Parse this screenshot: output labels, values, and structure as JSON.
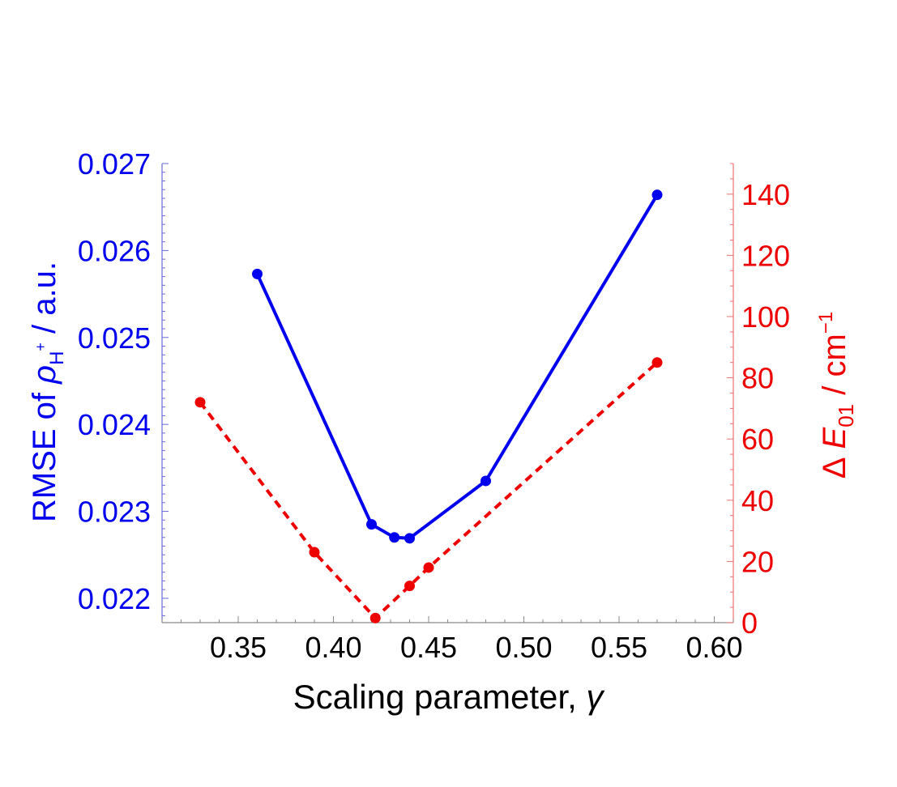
{
  "chart_data": {
    "type": "line",
    "xlabel": {
      "text": "Scaling parameter, ",
      "sym": "γ"
    },
    "xlim": [
      0.31,
      0.61
    ],
    "xticks": [
      "0.35",
      "0.40",
      "0.45",
      "0.50",
      "0.55",
      "0.60"
    ],
    "grid": false,
    "y_left": {
      "label_pre": "RMSE of ",
      "label_sym": "ρ",
      "label_sub": "H",
      "label_sup": "+",
      "label_post": " / a.u.",
      "color": "#0000ee",
      "ylim": [
        0.02172,
        0.027
      ],
      "ticks": [
        "0.022",
        "0.023",
        "0.024",
        "0.025",
        "0.026",
        "0.027"
      ]
    },
    "y_right": {
      "label_delta": "Δ",
      "label_sym": "E",
      "label_sub": "01",
      "label_post": " / cm",
      "label_sup": "−1",
      "color": "#ee0000",
      "ylim": [
        0,
        150
      ],
      "ticks": [
        "0",
        "20",
        "40",
        "60",
        "80",
        "100",
        "120",
        "140"
      ]
    },
    "series": [
      {
        "axis": "left",
        "style": "solid",
        "color": "#0000ee",
        "x": [
          0.36,
          0.42,
          0.432,
          0.44,
          0.48,
          0.57
        ],
        "y": [
          0.02573,
          0.02285,
          0.0227,
          0.02269,
          0.02335,
          0.02664
        ]
      },
      {
        "axis": "right",
        "style": "dashed",
        "color": "#ee0000",
        "x": [
          0.33,
          0.39,
          0.422,
          0.44,
          0.45,
          0.57
        ],
        "y": [
          72,
          23,
          1.5,
          12,
          18,
          85
        ]
      }
    ]
  }
}
